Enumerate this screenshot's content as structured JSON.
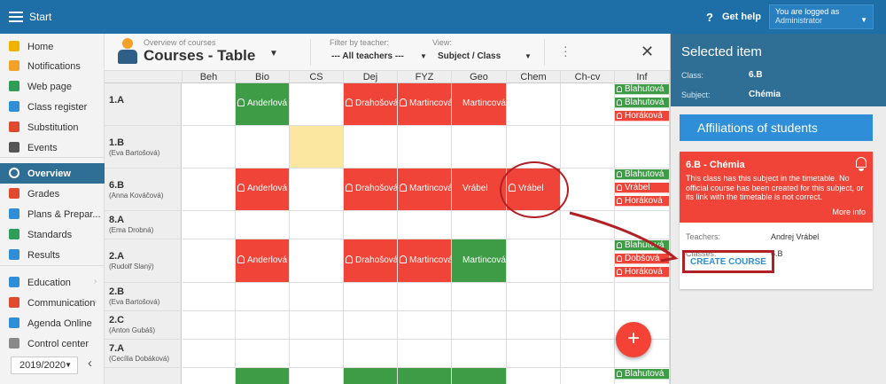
{
  "topbar": {
    "menu_icon": "hamburger-icon",
    "start": "Start",
    "help_icon": "?",
    "help": "Get help",
    "logged_line1": "You are logged as",
    "logged_line2": "Administrator"
  },
  "sidebar": {
    "items": [
      {
        "label": "Home",
        "icon": "star-icon",
        "color": "#f0b400"
      },
      {
        "label": "Notifications",
        "icon": "envelope-icon",
        "color": "#f4a12a"
      },
      {
        "label": "Web page",
        "icon": "house-icon",
        "color": "#2e9e57"
      },
      {
        "label": "Class register",
        "icon": "book-icon",
        "color": "#2e8fd8"
      },
      {
        "label": "Substitution",
        "icon": "person-icon",
        "color": "#e24a2e"
      },
      {
        "label": "Events",
        "icon": "calendar-icon",
        "color": "#555555"
      },
      {
        "label": "Overview",
        "icon": "check-icon",
        "color": "#ffffff"
      },
      {
        "label": "Grades",
        "icon": "grades-icon",
        "color": "#e24a2e"
      },
      {
        "label": "Plans & Prepar...",
        "icon": "plans-icon",
        "color": "#2e8fd8"
      },
      {
        "label": "Standards",
        "icon": "shield-icon",
        "color": "#2e9e57"
      },
      {
        "label": "Results",
        "icon": "bar-chart-icon",
        "color": "#2e8fd8"
      },
      {
        "label": "Education",
        "icon": "education-icon",
        "color": "#2e8fd8"
      },
      {
        "label": "Communication",
        "icon": "chat-icon",
        "color": "#e24a2e"
      },
      {
        "label": "Agenda Online",
        "icon": "pen-icon",
        "color": "#2e8fd8"
      },
      {
        "label": "Control center",
        "icon": "gear-icon",
        "color": "#888888"
      }
    ],
    "year": "2019/2020",
    "collapse": "‹"
  },
  "header": {
    "subtitle": "Overview of courses",
    "title": "Courses - Table",
    "filter_teacher_label": "Filter by teacher:",
    "filter_teacher_value": "--- All teachers ---",
    "view_label": "View:",
    "view_value": "Subject / Class",
    "menu_dots": "⋮",
    "close": "✕"
  },
  "grid": {
    "columns": [
      "Beh",
      "Bio",
      "CS",
      "Dej",
      "FYZ",
      "Geo",
      "Chem",
      "Ch-cv",
      "Inf"
    ],
    "rows": [
      {
        "class": "1.A",
        "teacher": ""
      },
      {
        "class": "1.B",
        "teacher": "(Eva Bartošová)"
      },
      {
        "class": "6.B",
        "teacher": "(Anna Kováčová)"
      },
      {
        "class": "8.A",
        "teacher": "(Ema Drobná)"
      },
      {
        "class": "2.A",
        "teacher": "(Rudolf Slaný)"
      },
      {
        "class": "2.B",
        "teacher": "(Eva Bartošová)"
      },
      {
        "class": "2.C",
        "teacher": "(Anton Gubáš)"
      },
      {
        "class": "7.A",
        "teacher": "(Cecília Dobáková)"
      }
    ],
    "cells": [
      {
        "row": 0,
        "col": 1,
        "color": "green",
        "bell": true,
        "text": "Anderlová"
      },
      {
        "row": 0,
        "col": 3,
        "color": "red",
        "bell": true,
        "text": "Drahošová"
      },
      {
        "row": 0,
        "col": 4,
        "color": "red",
        "bell": true,
        "text": "Martincová"
      },
      {
        "row": 0,
        "col": 5,
        "color": "red",
        "bell": false,
        "text": "Martincová"
      },
      {
        "row": 0,
        "col": 8,
        "stack": [
          {
            "color": "green",
            "text": "Blahutová"
          },
          {
            "color": "green",
            "text": "Blahutová"
          },
          {
            "color": "red",
            "text": "Horáková"
          }
        ]
      },
      {
        "row": 1,
        "col": 2,
        "color": "yellow",
        "bell": false,
        "text": ""
      },
      {
        "row": 2,
        "col": 1,
        "color": "red",
        "bell": true,
        "text": "Anderlová"
      },
      {
        "row": 2,
        "col": 3,
        "color": "red",
        "bell": true,
        "text": "Drahošová"
      },
      {
        "row": 2,
        "col": 4,
        "color": "red",
        "bell": true,
        "text": "Martincová"
      },
      {
        "row": 2,
        "col": 5,
        "color": "red",
        "bell": false,
        "text": "Vrábel"
      },
      {
        "row": 2,
        "col": 6,
        "color": "red",
        "bell": true,
        "text": "Vrábel"
      },
      {
        "row": 2,
        "col": 8,
        "stack": [
          {
            "color": "green",
            "text": "Blahutová"
          },
          {
            "color": "red",
            "text": "Vrábel"
          },
          {
            "color": "red",
            "text": "Horáková"
          }
        ]
      },
      {
        "row": 4,
        "col": 1,
        "color": "red",
        "bell": true,
        "text": "Anderlová"
      },
      {
        "row": 4,
        "col": 3,
        "color": "red",
        "bell": true,
        "text": "Drahošová"
      },
      {
        "row": 4,
        "col": 4,
        "color": "red",
        "bell": true,
        "text": "Martincová"
      },
      {
        "row": 4,
        "col": 5,
        "color": "green",
        "bell": false,
        "text": "Martincová"
      },
      {
        "row": 4,
        "col": 8,
        "stack": [
          {
            "color": "green",
            "text": "Blahutová"
          },
          {
            "color": "red",
            "text": "Dobšová"
          },
          {
            "color": "red",
            "text": "Horáková"
          }
        ]
      },
      {
        "row": 8,
        "col": 1,
        "color": "green",
        "bell": false,
        "text": ""
      },
      {
        "row": 8,
        "col": 3,
        "color": "green",
        "bell": false,
        "text": ""
      },
      {
        "row": 8,
        "col": 4,
        "color": "green",
        "bell": false,
        "text": ""
      },
      {
        "row": 8,
        "col": 5,
        "color": "green",
        "bell": false,
        "text": ""
      },
      {
        "row": 8,
        "col": 8,
        "stack": [
          {
            "color": "green",
            "text": "Blahutová"
          }
        ]
      }
    ],
    "fab": "+"
  },
  "panel": {
    "title": "Selected item",
    "class_label": "Class:",
    "class_value": "6.B",
    "subject_label": "Subject:",
    "subject_value": "Chémia",
    "affiliations_button": "Affiliations of students",
    "card": {
      "title": "6.B - Chémia",
      "description": "This class has this subject in the timetable. No official course has been created for this subject, or its link with the timetable is not correct.",
      "more_info": "More info",
      "teachers_label": "Teachers:",
      "teachers_value": "Andrej Vrábel",
      "classes_label": "Classes:",
      "classes_value": "6.B",
      "create_course": "CREATE COURSE"
    }
  }
}
